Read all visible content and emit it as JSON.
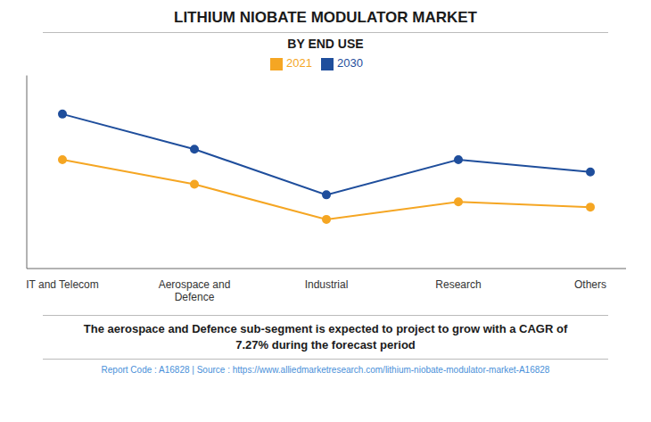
{
  "chart_data": {
    "type": "line",
    "title": "LITHIUM NIOBATE MODULATOR MARKET",
    "subtitle": "BY END USE",
    "categories": [
      "IT and Telecom",
      "Aerospace and\nDefence",
      "Industrial",
      "Research",
      "Others"
    ],
    "series": [
      {
        "name": "2021",
        "color": "#F5A623",
        "values": [
          62,
          48,
          28,
          38,
          35
        ]
      },
      {
        "name": "2030",
        "color": "#1F4E9C",
        "values": [
          88,
          68,
          42,
          62,
          55
        ]
      }
    ],
    "ylim": [
      0,
      110
    ],
    "grid": false,
    "legend": "top",
    "tick_labels": "x",
    "marker": "circle",
    "annotations": [
      "The aerospace and Defence sub-segment is expected to project to grow with a CAGR of\n7.27% during the forecast period",
      "Report Code : A16828  |  Source : https://www.alliedmarketresearch.com/lithium-niobate-modulator-market-A16828"
    ]
  }
}
